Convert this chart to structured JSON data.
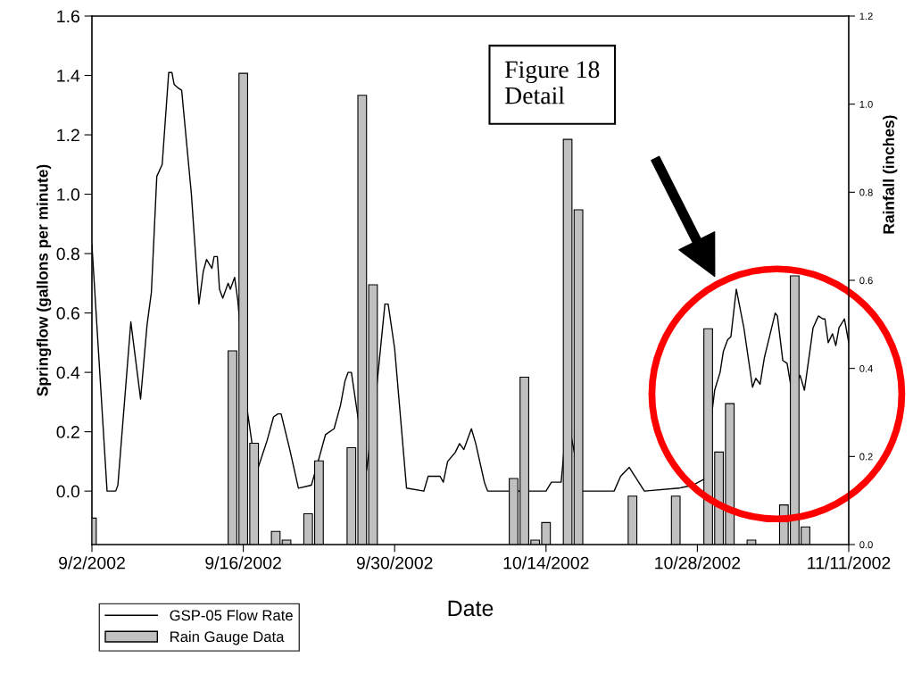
{
  "chart_data": {
    "type": "line",
    "xlabel": "Date",
    "ylabel": "Springflow (gallons per minute)",
    "y2label": "Rainfall (inches)",
    "annotations": [
      "Figure 18\nDetail"
    ],
    "xlim": [
      "2002-09-02",
      "2002-11-11"
    ],
    "xticks": [
      {
        "value": "2002-09-02",
        "label": "9/2/2002"
      },
      {
        "value": "2002-09-16",
        "label": "9/16/2002"
      },
      {
        "value": "2002-09-30",
        "label": "9/30/2002"
      },
      {
        "value": "2002-10-14",
        "label": "10/14/2002"
      },
      {
        "value": "2002-10-28",
        "label": "10/28/2002"
      },
      {
        "value": "2002-11-11",
        "label": "11/11/2002"
      }
    ],
    "ylim": [
      -0.18,
      1.6
    ],
    "yticks": [
      {
        "value": 0,
        "label": "0.0"
      },
      {
        "value": 0.2,
        "label": "0.2"
      },
      {
        "value": 0.4,
        "label": "0.4"
      },
      {
        "value": 0.6,
        "label": "0.6"
      },
      {
        "value": 0.8,
        "label": "0.8"
      },
      {
        "value": 1.0,
        "label": "1.0"
      },
      {
        "value": 1.2,
        "label": "1.2"
      },
      {
        "value": 1.4,
        "label": "1.4"
      },
      {
        "value": 1.6,
        "label": "1.6"
      }
    ],
    "y2lim": [
      0,
      1.2
    ],
    "y2ticks": [
      {
        "value": 0,
        "label": "0.0"
      },
      {
        "value": 0.2,
        "label": "0.2"
      },
      {
        "value": 0.4,
        "label": "0.4"
      },
      {
        "value": 0.6,
        "label": "0.6"
      },
      {
        "value": 0.8,
        "label": "0.8"
      },
      {
        "value": 1.0,
        "label": "1.0"
      },
      {
        "value": 1.2,
        "label": "1.2"
      }
    ],
    "grid": false,
    "legend": "bottom left",
    "marker": "none",
    "line_style": "solid",
    "series": [
      {
        "name": "GSP-05 Flow Rate",
        "type": "line",
        "color": "#000000",
        "x": [
          "2002-09-02T00:00",
          "2002-09-03T09:36",
          "2002-09-04T04:48",
          "2002-09-04T09:36",
          "2002-09-05T14:24",
          "2002-09-06T12:00",
          "2002-09-07T02:24",
          "2002-09-07T12:00",
          "2002-09-08T00:00",
          "2002-09-08T12:00",
          "2002-09-09T02:24",
          "2002-09-09T09:36",
          "2002-09-09T14:24",
          "2002-09-09T21:36",
          "2002-09-10T07:12",
          "2002-09-11T04:48",
          "2002-09-11T21:36",
          "2002-09-12T07:12",
          "2002-09-12T14:24",
          "2002-09-13T02:24",
          "2002-09-13T07:12",
          "2002-09-13T14:24",
          "2002-09-13T19:12",
          "2002-09-14T02:24",
          "2002-09-14T14:24",
          "2002-09-14T19:12",
          "2002-09-15T04:48",
          "2002-09-15T12:00",
          "2002-09-16T07:12",
          "2002-09-17T04:48",
          "2002-09-18T04:48",
          "2002-09-18T19:12",
          "2002-09-19T04:48",
          "2002-09-19T12:00",
          "2002-09-20T07:12",
          "2002-09-21T02:24",
          "2002-09-22T07:12",
          "2002-09-23T00:00",
          "2002-09-23T14:24",
          "2002-09-24T09:36",
          "2002-09-25T00:00",
          "2002-09-25T09:36",
          "2002-09-25T16:48",
          "2002-09-26T00:00",
          "2002-09-26T14:24",
          "2002-09-27T09:36",
          "2002-09-28T04:48",
          "2002-09-29T02:24",
          "2002-09-29T09:36",
          "2002-09-30T00:00",
          "2002-10-01T02:24",
          "2002-10-02T16:48",
          "2002-10-03T02:24",
          "2002-10-04T04:48",
          "2002-10-04T12:00",
          "2002-10-04T21:36",
          "2002-10-05T14:24",
          "2002-10-06T00:00",
          "2002-10-06T09:36",
          "2002-10-07T02:24",
          "2002-10-07T12:00",
          "2002-10-08T07:12",
          "2002-10-08T14:24",
          "2002-10-11T09:36",
          "2002-10-14T00:00",
          "2002-10-14T12:00",
          "2002-10-15T09:36",
          "2002-10-15T16:48",
          "2002-10-16T07:12",
          "2002-10-17T07:12",
          "2002-10-20T07:12",
          "2002-10-20T21:36",
          "2002-10-21T16:48",
          "2002-10-22T09:36",
          "2002-10-23T02:24",
          "2002-10-26T07:12",
          "2002-10-27T14:24",
          "2002-10-28T14:24",
          "2002-10-29T07:12",
          "2002-10-29T14:24",
          "2002-10-30T02:24",
          "2002-10-30T09:36",
          "2002-10-30T19:12",
          "2002-10-31T02:24",
          "2002-10-31T14:24",
          "2002-11-01T07:12",
          "2002-11-02T02:24",
          "2002-11-02T09:36",
          "2002-11-02T19:12",
          "2002-11-03T04:48",
          "2002-11-03T19:12",
          "2002-11-04T04:48",
          "2002-11-04T09:36",
          "2002-11-04T21:36",
          "2002-11-05T07:12",
          "2002-11-05T19:12",
          "2002-11-06T12:00",
          "2002-11-06T21:36",
          "2002-11-07T09:36",
          "2002-11-07T16:48",
          "2002-11-08T04:48",
          "2002-11-08T14:24",
          "2002-11-08T19:12",
          "2002-11-09T02:24",
          "2002-11-09T12:00",
          "2002-11-09T19:12",
          "2002-11-10T02:24",
          "2002-11-10T14:24",
          "2002-11-10T21:36",
          "2002-11-11T00:00"
        ],
        "values": [
          0.83,
          0.0,
          0.0,
          0.02,
          0.57,
          0.31,
          0.56,
          0.67,
          1.06,
          1.1,
          1.41,
          1.41,
          1.37,
          1.36,
          1.35,
          1.0,
          0.63,
          0.74,
          0.78,
          0.75,
          0.79,
          0.79,
          0.68,
          0.65,
          0.7,
          0.68,
          0.72,
          0.64,
          0.29,
          0.06,
          0.17,
          0.25,
          0.26,
          0.26,
          0.14,
          0.01,
          0.02,
          0.11,
          0.19,
          0.21,
          0.29,
          0.37,
          0.4,
          0.4,
          0.25,
          0.07,
          0.3,
          0.63,
          0.63,
          0.48,
          0.01,
          0.0,
          0.05,
          0.05,
          0.03,
          0.1,
          0.13,
          0.16,
          0.14,
          0.21,
          0.16,
          0.03,
          0.0,
          0.0,
          0.0,
          0.03,
          0.03,
          0.15,
          0.19,
          0.0,
          0.0,
          0.05,
          0.08,
          0.04,
          0.0,
          0.01,
          0.02,
          0.04,
          0.25,
          0.34,
          0.4,
          0.47,
          0.51,
          0.52,
          0.68,
          0.55,
          0.35,
          0.38,
          0.36,
          0.45,
          0.54,
          0.6,
          0.59,
          0.44,
          0.43,
          0.32,
          0.39,
          0.34,
          0.47,
          0.55,
          0.59,
          0.58,
          0.58,
          0.5,
          0.53,
          0.49,
          0.55,
          0.58,
          0.52,
          0.5
        ]
      },
      {
        "name": "Rain Gauge Data",
        "type": "bar",
        "axis": "y2",
        "color": "#c0c0c0",
        "x": [
          "2002-09-02",
          "2002-09-15",
          "2002-09-16",
          "2002-09-17",
          "2002-09-19",
          "2002-09-20",
          "2002-09-22",
          "2002-09-23",
          "2002-09-26",
          "2002-09-27",
          "2002-09-28",
          "2002-10-11",
          "2002-10-12",
          "2002-10-13",
          "2002-10-14",
          "2002-10-16",
          "2002-10-17",
          "2002-10-22",
          "2002-10-26",
          "2002-10-29",
          "2002-10-30",
          "2002-10-31",
          "2002-11-02",
          "2002-11-05",
          "2002-11-06",
          "2002-11-07"
        ],
        "values": [
          0.06,
          0.44,
          1.07,
          0.23,
          0.03,
          0.01,
          0.07,
          0.19,
          0.22,
          1.02,
          0.59,
          0.15,
          0.38,
          0.01,
          0.05,
          0.92,
          0.76,
          0.11,
          0.11,
          0.49,
          0.21,
          0.32,
          0.01,
          0.09,
          0.61,
          0.04
        ]
      }
    ]
  }
}
